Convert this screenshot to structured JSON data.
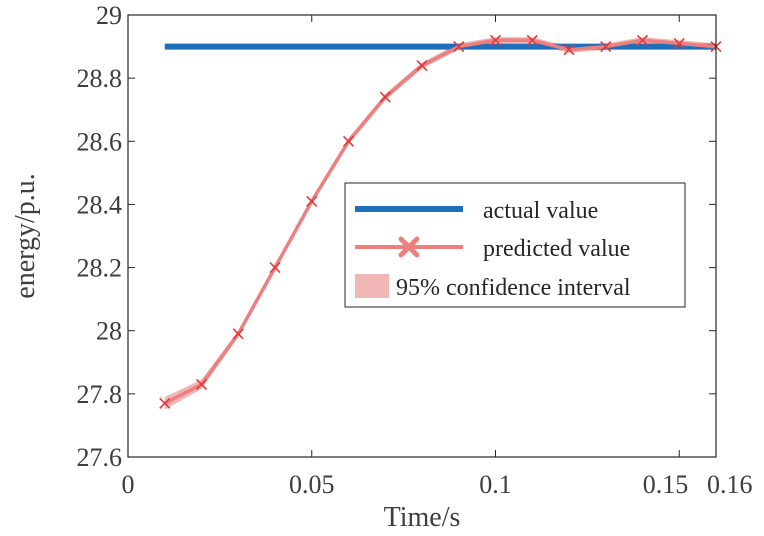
{
  "chart_data": {
    "type": "line",
    "title": "",
    "xlabel": "Time/s",
    "ylabel": "energy/p.u.",
    "xlim": [
      0,
      0.16
    ],
    "ylim": [
      27.6,
      29
    ],
    "x_ticks": [
      0,
      0.05,
      0.1,
      0.15,
      0.16
    ],
    "x_tick_labels": [
      "0",
      "0.05",
      "0.1",
      "0.15",
      "0.16"
    ],
    "y_ticks": [
      27.6,
      27.8,
      28,
      28.2,
      28.4,
      28.6,
      28.8,
      29
    ],
    "y_tick_labels": [
      "27.6",
      "27.8",
      "28",
      "28.2",
      "28.4",
      "28.6",
      "28.8",
      "29"
    ],
    "grid": false,
    "legend_position": "center-right",
    "colors": {
      "actual": "#1f6fba",
      "predicted": "#ee7f7f",
      "marker": "#e23a3a",
      "band": "#f1b7b7",
      "axis": "#262626"
    },
    "series": [
      {
        "name": "actual value",
        "style": "line",
        "x": [
          0.01,
          0.16
        ],
        "y": [
          28.9,
          28.9
        ]
      },
      {
        "name": "predicted value",
        "style": "line-marker",
        "x": [
          0.01,
          0.02,
          0.03,
          0.04,
          0.05,
          0.06,
          0.07,
          0.08,
          0.09,
          0.1,
          0.11,
          0.12,
          0.13,
          0.14,
          0.15,
          0.16
        ],
        "y": [
          27.77,
          27.83,
          27.99,
          28.2,
          28.41,
          28.6,
          28.74,
          28.84,
          28.9,
          28.92,
          28.92,
          28.89,
          28.9,
          28.92,
          28.91,
          28.9
        ]
      }
    ],
    "confidence_interval": {
      "name": "95% confidence interval",
      "x": [
        0.01,
        0.02,
        0.03,
        0.04,
        0.05,
        0.06,
        0.07,
        0.08,
        0.09,
        0.1,
        0.11,
        0.12,
        0.13,
        0.14,
        0.15,
        0.16
      ],
      "lower": [
        27.75,
        27.815,
        27.98,
        28.19,
        28.4,
        28.59,
        28.73,
        28.83,
        28.89,
        28.91,
        28.91,
        28.88,
        28.89,
        28.91,
        28.9,
        28.89
      ],
      "upper": [
        27.79,
        27.845,
        28.0,
        28.21,
        28.42,
        28.61,
        28.75,
        28.85,
        28.91,
        28.93,
        28.93,
        28.9,
        28.91,
        28.93,
        28.92,
        28.91
      ]
    }
  }
}
